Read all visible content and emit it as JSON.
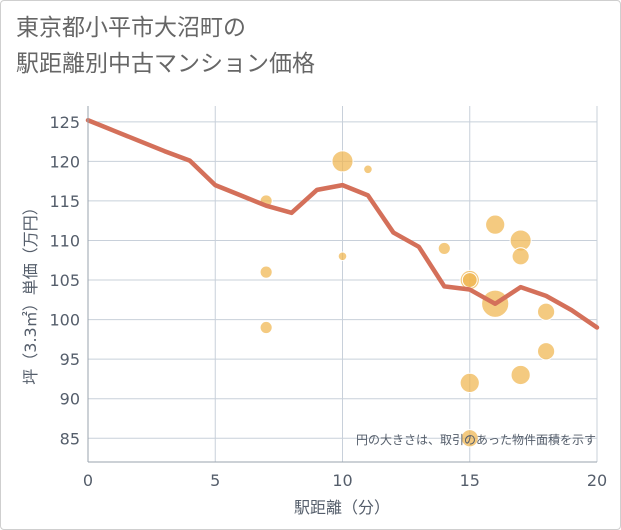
{
  "title_lines": [
    "東京都小平市大沼町の",
    "駅距離別中古マンション価格"
  ],
  "chart_data": {
    "type": "scatter",
    "title": "東京都小平市大沼町の駅距離別中古マンション価格",
    "xlabel": "駅距離（分）",
    "ylabel": "坪（3.3㎡）単価（万円）",
    "xlim": [
      0,
      20
    ],
    "ylim": [
      82,
      127
    ],
    "x_ticks": [
      0,
      5,
      10,
      15,
      20
    ],
    "y_ticks": [
      85,
      90,
      95,
      100,
      105,
      110,
      115,
      120,
      125
    ],
    "grid": true,
    "annotation": "円の大きさは、取引のあった物件面積を示す",
    "colors": {
      "bubble": "#f0b64f",
      "line": "#d4705a",
      "grid": "#c8d0da",
      "axis_text": "#555e6b"
    },
    "points": [
      {
        "x": 7,
        "y": 115,
        "size": 2
      },
      {
        "x": 7,
        "y": 106,
        "size": 2
      },
      {
        "x": 7,
        "y": 99,
        "size": 2
      },
      {
        "x": 10,
        "y": 120,
        "size": 6
      },
      {
        "x": 10,
        "y": 108,
        "size": 1
      },
      {
        "x": 11,
        "y": 119,
        "size": 1
      },
      {
        "x": 14,
        "y": 109,
        "size": 2
      },
      {
        "x": 15,
        "y": 105,
        "size": 5
      },
      {
        "x": 15,
        "y": 105,
        "size": 3
      },
      {
        "x": 15,
        "y": 92,
        "size": 5
      },
      {
        "x": 15,
        "y": 85,
        "size": 4
      },
      {
        "x": 16,
        "y": 112,
        "size": 5
      },
      {
        "x": 16,
        "y": 102,
        "size": 10
      },
      {
        "x": 17,
        "y": 110,
        "size": 6
      },
      {
        "x": 17,
        "y": 108,
        "size": 4
      },
      {
        "x": 17,
        "y": 93,
        "size": 5
      },
      {
        "x": 18,
        "y": 101,
        "size": 4
      },
      {
        "x": 18,
        "y": 96,
        "size": 4
      }
    ],
    "trend": {
      "x": [
        0,
        1,
        2,
        3,
        4,
        5,
        6,
        7,
        8,
        9,
        10,
        11,
        12,
        13,
        14,
        15,
        16,
        17,
        18,
        19,
        20
      ],
      "y": [
        125.2,
        123.9,
        122.6,
        121.3,
        120.1,
        117.0,
        115.7,
        114.4,
        113.5,
        116.4,
        117.0,
        115.7,
        111.0,
        109.2,
        104.2,
        103.8,
        102.0,
        104.1,
        103.0,
        101.2,
        99.0
      ]
    }
  }
}
